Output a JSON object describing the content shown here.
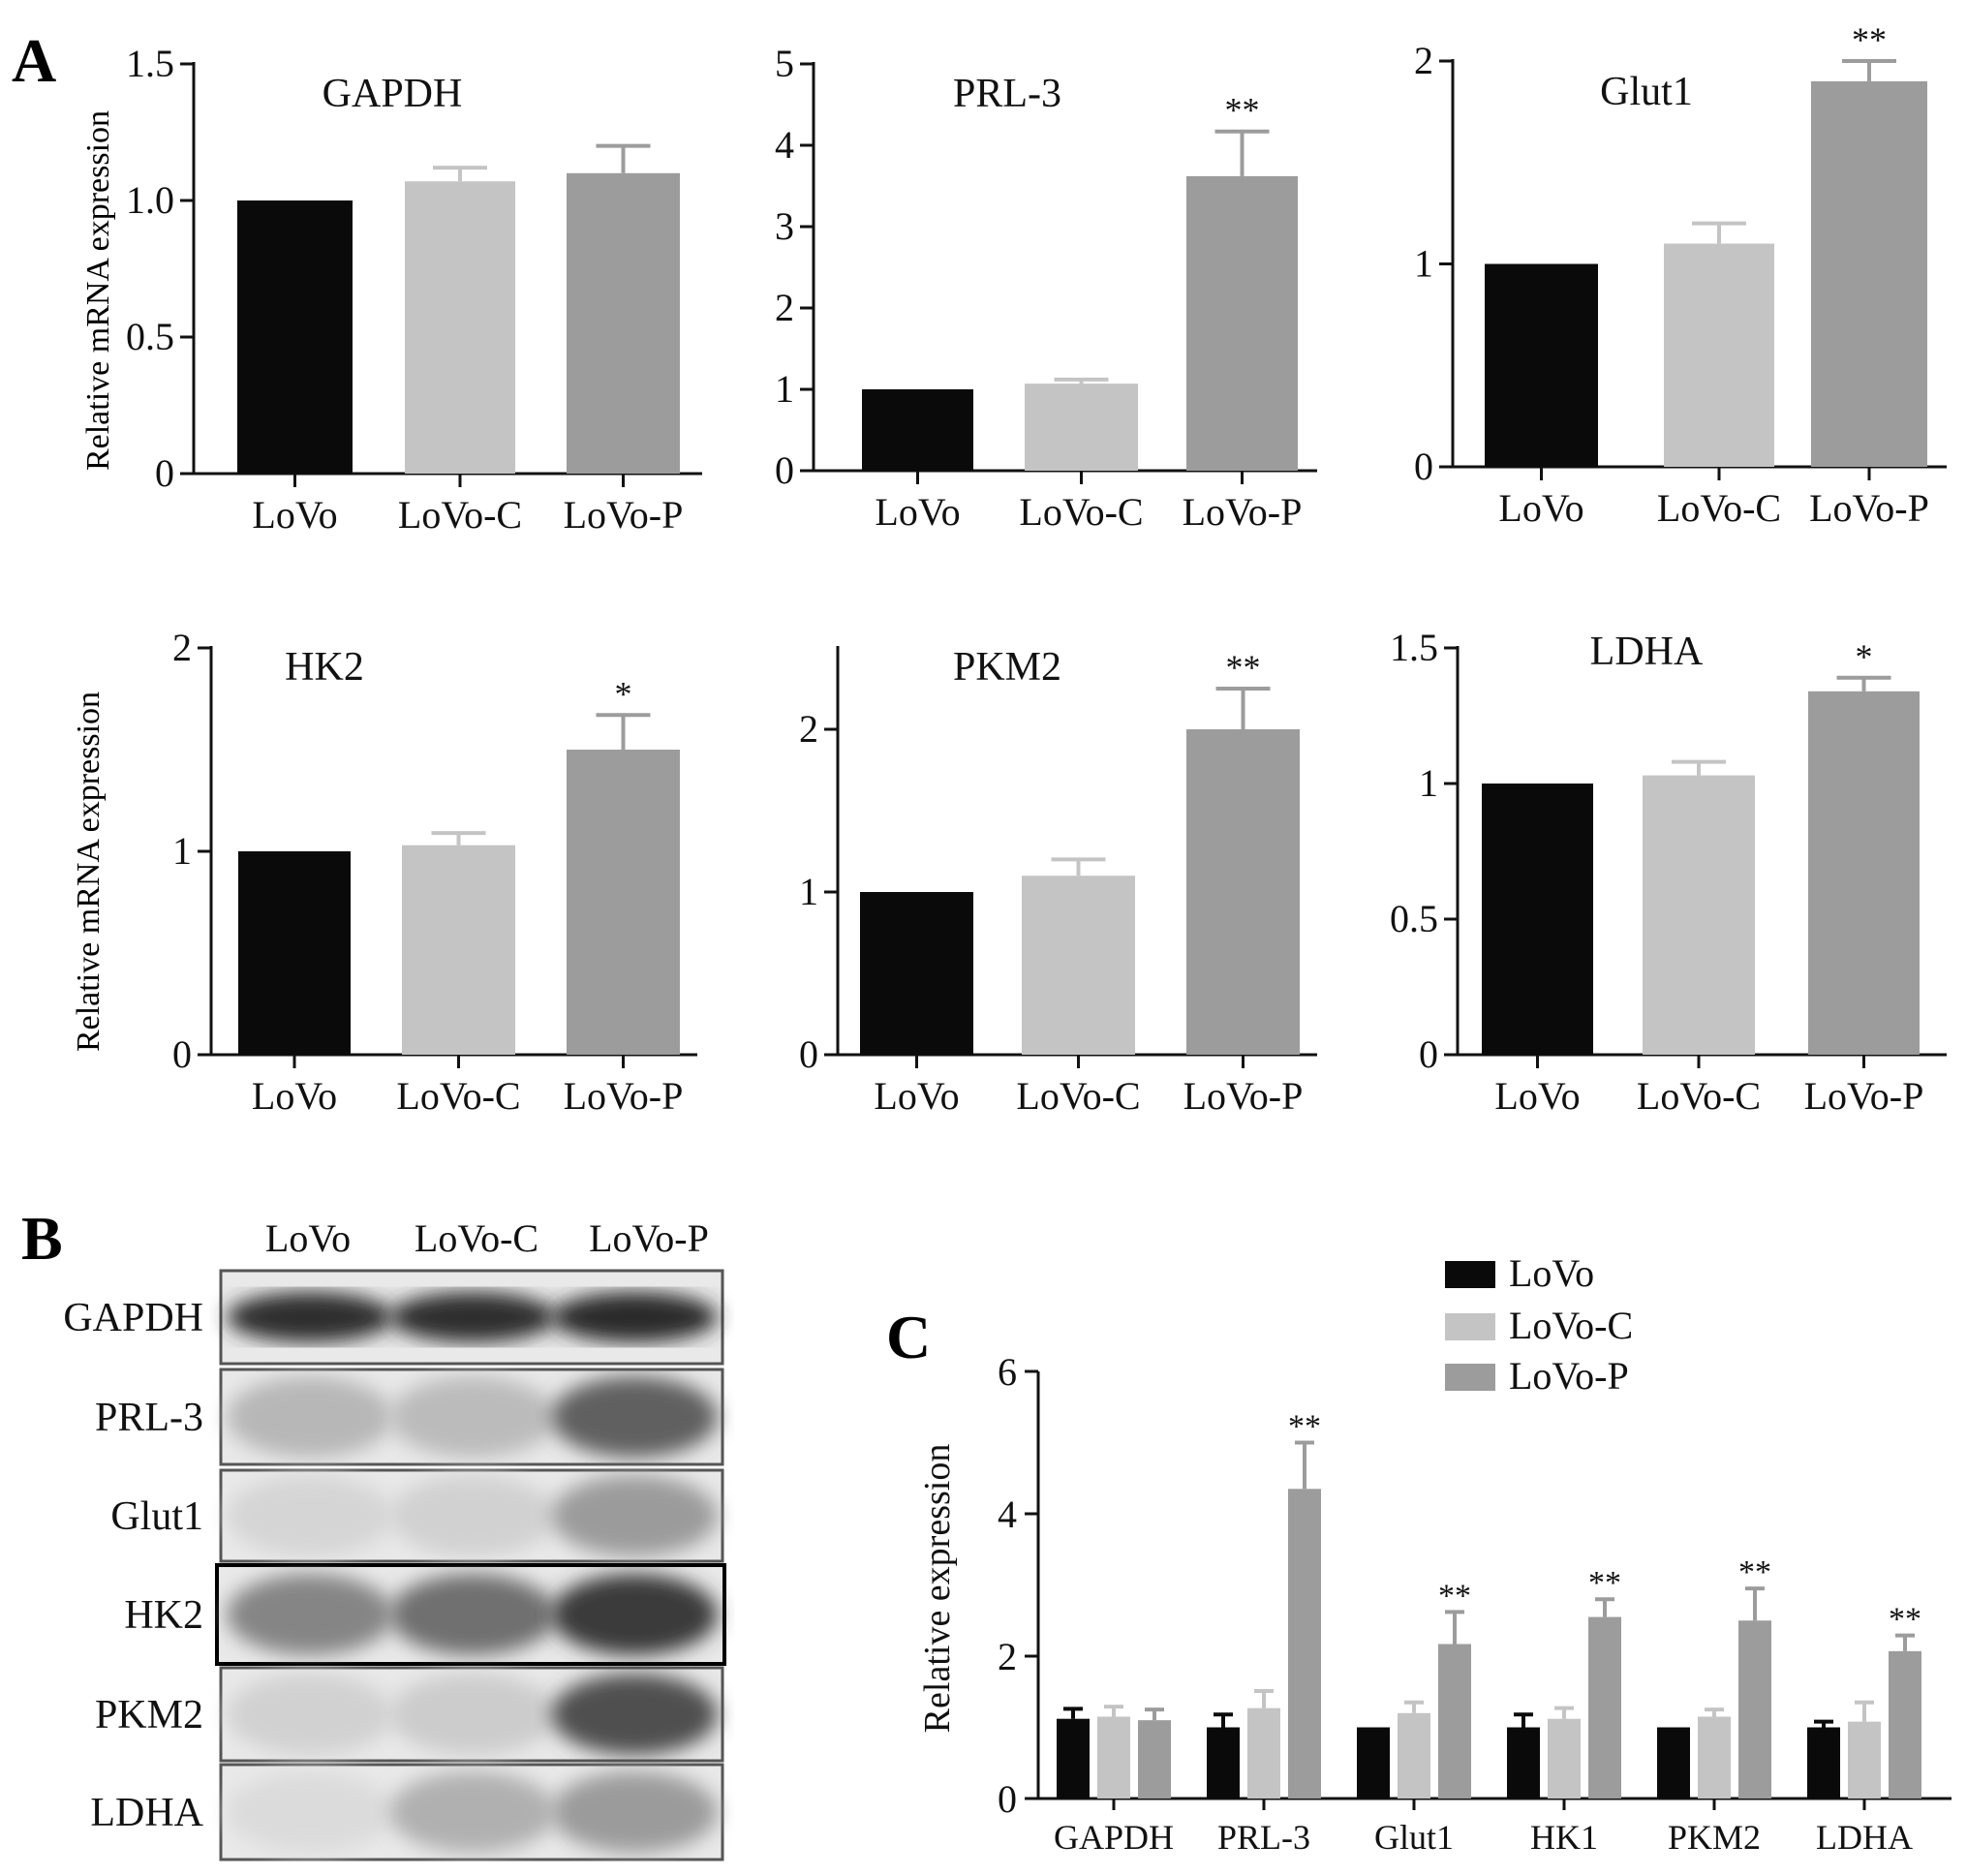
{
  "figure": {
    "panel_labels": [
      "A",
      "B",
      "C"
    ],
    "y_axis_label_a": "Relative mRNA expression",
    "y_axis_label_c": "Relative expression"
  },
  "colors": {
    "LoVo": "#0a0a0a",
    "LoVo-C": "#c4c4c4",
    "LoVo-P": "#9c9c9c",
    "axis": "#111111"
  },
  "chart_data": [
    {
      "type": "bar",
      "title": "GAPDH",
      "categories": [
        "LoVo",
        "LoVo-C",
        "LoVo-P"
      ],
      "values": [
        1.0,
        1.07,
        1.1
      ],
      "errors": [
        0,
        0.05,
        0.1
      ],
      "significance": [
        "",
        "",
        ""
      ],
      "ylim": [
        0,
        1.5
      ],
      "yticks": [
        "0",
        "0.5",
        "1.0",
        "1.5"
      ],
      "ytick_values": [
        0,
        0.5,
        1.0,
        1.5
      ],
      "ylabel": "Relative mRNA expression"
    },
    {
      "type": "bar",
      "title": "PRL-3",
      "categories": [
        "LoVo",
        "LoVo-C",
        "LoVo-P"
      ],
      "values": [
        1.0,
        1.07,
        3.62
      ],
      "errors": [
        0,
        0.05,
        0.55
      ],
      "significance": [
        "",
        "",
        "**"
      ],
      "ylim": [
        0,
        5
      ],
      "yticks": [
        "0",
        "1",
        "2",
        "3",
        "4",
        "5"
      ],
      "ytick_values": [
        0,
        1,
        2,
        3,
        4,
        5
      ],
      "ylabel": ""
    },
    {
      "type": "bar",
      "title": "Glut1",
      "categories": [
        "LoVo",
        "LoVo-C",
        "LoVo-P"
      ],
      "values": [
        1.0,
        1.1,
        1.9
      ],
      "errors": [
        0,
        0.1,
        0.1
      ],
      "significance": [
        "",
        "",
        "**"
      ],
      "ylim": [
        0,
        2
      ],
      "yticks": [
        "0",
        "1",
        "2"
      ],
      "ytick_values": [
        0,
        1,
        2
      ],
      "ylabel": ""
    },
    {
      "type": "bar",
      "title": "HK2",
      "categories": [
        "LoVo",
        "LoVo-C",
        "LoVo-P"
      ],
      "values": [
        1.0,
        1.03,
        1.5
      ],
      "errors": [
        0,
        0.06,
        0.17
      ],
      "significance": [
        "",
        "",
        "*"
      ],
      "ylim": [
        0,
        2
      ],
      "yticks": [
        "0",
        "1",
        "2"
      ],
      "ytick_values": [
        0,
        1,
        2
      ],
      "ylabel": "Relative mRNA expression"
    },
    {
      "type": "bar",
      "title": "PKM2",
      "categories": [
        "LoVo",
        "LoVo-C",
        "LoVo-P"
      ],
      "values": [
        1.0,
        1.1,
        2.0
      ],
      "errors": [
        0,
        0.1,
        0.25
      ],
      "significance": [
        "",
        "",
        "**"
      ],
      "ylim": [
        0,
        2.5
      ],
      "yticks": [
        "0",
        "1",
        "2"
      ],
      "ytick_values": [
        0,
        1,
        2
      ],
      "ylabel": ""
    },
    {
      "type": "bar",
      "title": "LDHA",
      "categories": [
        "LoVo",
        "LoVo-C",
        "LoVo-P"
      ],
      "values": [
        1.0,
        1.03,
        1.34
      ],
      "errors": [
        0,
        0.05,
        0.05
      ],
      "significance": [
        "",
        "",
        "*"
      ],
      "ylim": [
        0,
        1.5
      ],
      "yticks": [
        "0",
        "0.5",
        "1",
        "1.5"
      ],
      "ytick_values": [
        0,
        0.5,
        1,
        1.5
      ],
      "ylabel": ""
    },
    {
      "type": "bar",
      "title": "",
      "ylabel": "Relative expression",
      "categories": [
        "GAPDH",
        "PRL-3",
        "Glut1",
        "HK1",
        "PKM2",
        "LDHA"
      ],
      "ylim": [
        0,
        6
      ],
      "yticks": [
        "0",
        "2",
        "4",
        "6"
      ],
      "ytick_values": [
        0,
        2,
        4,
        6
      ],
      "legend_position": "top-right",
      "series": [
        {
          "name": "LoVo",
          "values": [
            1.12,
            1.0,
            1.0,
            1.0,
            1.0,
            1.0
          ],
          "errors": [
            0.14,
            0.18,
            0,
            0.18,
            0,
            0.08
          ],
          "significance": [
            "",
            "",
            "",
            "",
            "",
            ""
          ]
        },
        {
          "name": "LoVo-C",
          "values": [
            1.15,
            1.27,
            1.2,
            1.12,
            1.15,
            1.08
          ],
          "errors": [
            0.14,
            0.24,
            0.15,
            0.15,
            0.1,
            0.27
          ],
          "significance": [
            "",
            "",
            "",
            "",
            "",
            ""
          ]
        },
        {
          "name": "LoVo-P",
          "values": [
            1.1,
            4.35,
            2.17,
            2.55,
            2.5,
            2.07
          ],
          "errors": [
            0.15,
            0.65,
            0.45,
            0.25,
            0.45,
            0.22
          ],
          "significance": [
            "",
            "**",
            "**",
            "**",
            "**",
            "**"
          ]
        }
      ]
    }
  ],
  "western_blot": {
    "lanes": [
      "LoVo",
      "LoVo-C",
      "LoVo-P"
    ],
    "proteins": [
      "GAPDH",
      "PRL-3",
      "Glut1",
      "HK2",
      "PKM2",
      "LDHA"
    ],
    "intensities": [
      [
        0.85,
        0.85,
        0.88
      ],
      [
        0.22,
        0.2,
        0.62
      ],
      [
        0.08,
        0.1,
        0.35
      ],
      [
        0.45,
        0.55,
        0.8
      ],
      [
        0.1,
        0.12,
        0.7
      ],
      [
        0.05,
        0.25,
        0.35
      ]
    ]
  }
}
